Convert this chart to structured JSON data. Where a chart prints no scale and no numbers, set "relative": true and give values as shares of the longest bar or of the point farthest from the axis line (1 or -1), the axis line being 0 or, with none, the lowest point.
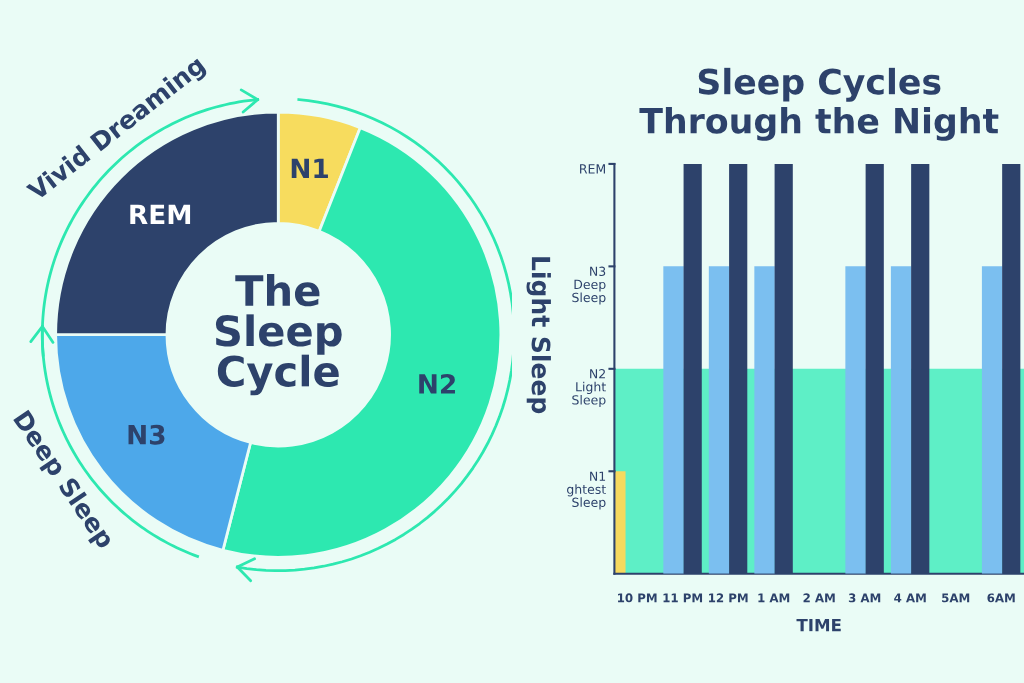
{
  "chart_data": [
    {
      "type": "donut",
      "title": "The\nSleep\nCycle",
      "categories": [
        "N1",
        "N2",
        "N3",
        "REM"
      ],
      "values": [
        6,
        48,
        21,
        25
      ],
      "colors": [
        "#f7dc5e",
        "#2de8b0",
        "#4da8ea",
        "#2d426b"
      ],
      "annotations": [
        "Vivid Dreaming",
        "Light Sleep",
        "Deep Sleep"
      ]
    },
    {
      "type": "bar",
      "title": "Sleep Cycles\nThrough the Night",
      "xlabel": "TIME",
      "categories": [
        "10 PM",
        "11 PM",
        "12 PM",
        "1 AM",
        "2 AM",
        "3 AM",
        "4 AM",
        "5AM",
        "6AM"
      ],
      "relative": true,
      "bands": [
        {
          "axis": "y",
          "from": 0,
          "to": 0.5,
          "color": "#5eefc6"
        }
      ],
      "series": [
        {
          "color": "#f6d95e",
          "values": [
            0.25,
            null,
            null,
            null,
            null,
            null,
            null,
            null,
            null
          ]
        },
        {
          "color": "#7bbff0",
          "values": [
            null,
            0.75,
            0.75,
            0.75,
            null,
            0.75,
            0.75,
            null,
            0.75
          ]
        },
        {
          "color": "#2d426b",
          "values": [
            null,
            1,
            1,
            1,
            null,
            1,
            1,
            null,
            1
          ]
        }
      ],
      "annotations": [
        "N1\nghtest\nSleep",
        "N2\nLight\nSleep",
        "N3\nDeep\nSleep",
        "REM"
      ]
    }
  ]
}
